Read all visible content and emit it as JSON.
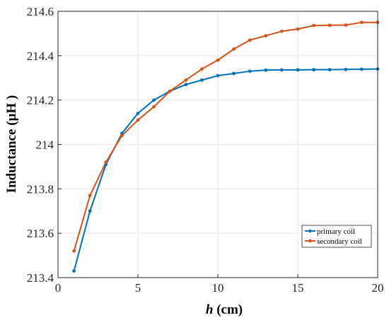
{
  "chart_data": {
    "type": "line",
    "xlabel_italic": "h",
    "xlabel_rest": " (cm)",
    "ylabel": "Inductance (µH )",
    "xlim": [
      0,
      20
    ],
    "ylim": [
      213.4,
      214.6
    ],
    "xticks": [
      0,
      5,
      10,
      15,
      20
    ],
    "xtick_labels": [
      "0",
      "5",
      "10",
      "15",
      "20"
    ],
    "yticks": [
      213.4,
      213.6,
      213.8,
      214,
      214.2,
      214.4,
      214.6
    ],
    "ytick_labels": [
      "213.4",
      "213.6",
      "213.8",
      "214",
      "214.2",
      "214.4",
      "214.6"
    ],
    "grid": true,
    "legend_position": "bottom-right",
    "x": [
      1,
      2,
      3,
      4,
      5,
      6,
      7,
      8,
      9,
      10,
      11,
      12,
      13,
      14,
      15,
      16,
      17,
      18,
      19,
      20
    ],
    "series": [
      {
        "name": "primary coil",
        "color": "#0072BD",
        "values": [
          213.43,
          213.7,
          213.91,
          214.05,
          214.14,
          214.2,
          214.24,
          214.27,
          214.29,
          214.31,
          214.32,
          214.33,
          214.335,
          214.336,
          214.336,
          214.337,
          214.337,
          214.338,
          214.339,
          214.34
        ]
      },
      {
        "name": "secondary coil",
        "color": "#D95319",
        "values": [
          213.52,
          213.77,
          213.92,
          214.04,
          214.11,
          214.17,
          214.24,
          214.29,
          214.34,
          214.38,
          214.43,
          214.47,
          214.49,
          214.51,
          214.52,
          214.536,
          214.537,
          214.538,
          214.55,
          214.55
        ]
      }
    ]
  }
}
